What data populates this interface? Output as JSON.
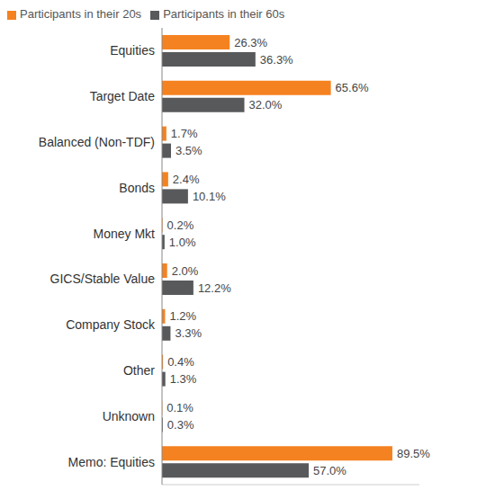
{
  "chart_data": {
    "type": "bar",
    "orientation": "horizontal",
    "categories": [
      "Equities",
      "Target Date",
      "Balanced (Non-TDF)",
      "Bonds",
      "Money Mkt",
      "GICS/Stable Value",
      "Company Stock",
      "Other",
      "Unknown",
      "Memo: Equities"
    ],
    "series": [
      {
        "name": "Participants in their 20s",
        "color": "#f58220",
        "values": [
          26.3,
          65.6,
          1.7,
          2.4,
          0.2,
          2.0,
          1.2,
          0.4,
          0.1,
          89.5
        ],
        "value_labels": [
          "26.3%",
          "65.6%",
          "1.7%",
          "2.4%",
          "0.2%",
          "2.0%",
          "1.2%",
          "0.4%",
          "0.1%",
          "89.5%"
        ]
      },
      {
        "name": "Participants in their 60s",
        "color": "#58595b",
        "values": [
          36.3,
          32.0,
          3.5,
          10.1,
          1.0,
          12.2,
          3.3,
          1.3,
          0.3,
          57.0
        ],
        "value_labels": [
          "36.3%",
          "32.0%",
          "3.5%",
          "10.1%",
          "1.0%",
          "12.2%",
          "3.3%",
          "1.3%",
          "0.3%",
          "57.0%"
        ]
      }
    ],
    "xlim": [
      0,
      100
    ],
    "data_labels": true,
    "tick_labels": "y",
    "legend": "top-left",
    "grid": false
  }
}
